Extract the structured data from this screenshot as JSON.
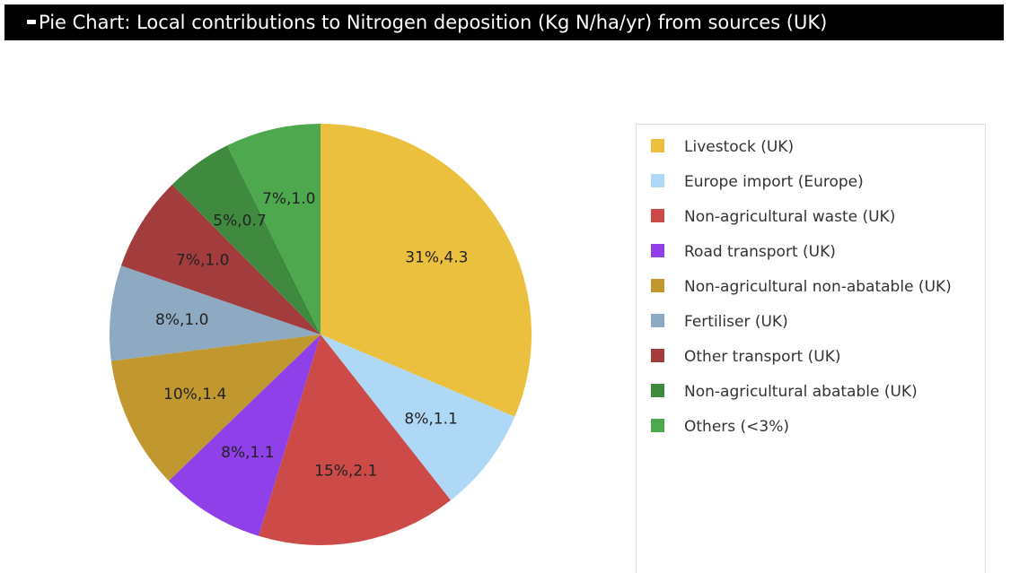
{
  "chart_data": {
    "type": "pie",
    "title": "Pie Chart: Local contributions to Nitrogen deposition (Kg N/ha/yr) from sources (UK)",
    "categories": [
      "Livestock (UK)",
      "Europe import (Europe)",
      "Non-agricultural waste (UK)",
      "Road transport (UK)",
      "Non-agricultural non-abatable (UK)",
      "Fertiliser (UK)",
      "Other transport (UK)",
      "Non-agricultural abatable (UK)",
      "Others (<3%)"
    ],
    "values": [
      4.3,
      1.1,
      2.1,
      1.1,
      1.4,
      1.0,
      1.0,
      0.7,
      1.0
    ],
    "value_labels": [
      "31%,4.3",
      "8%,1.1",
      "15%,2.1",
      "8%,1.1",
      "10%,1.4",
      "8%,1.0",
      "7%,1.0",
      "5%,0.7",
      "7%,1.0"
    ],
    "colors": [
      "#ecc03f",
      "#aed8f5",
      "#cc4a47",
      "#9040e8",
      "#c0982f",
      "#8eaac3",
      "#a33c3c",
      "#3f8a3f",
      "#4ea84e"
    ]
  }
}
